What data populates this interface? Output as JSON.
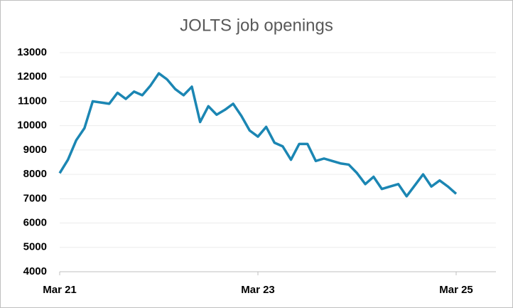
{
  "chart_data": {
    "type": "line",
    "title": "JOLTS job openings",
    "categories": [
      "Mar 21",
      null,
      null,
      null,
      null,
      null,
      null,
      null,
      null,
      null,
      null,
      null,
      null,
      null,
      null,
      null,
      null,
      null,
      null,
      null,
      null,
      null,
      null,
      null,
      "Mar 23",
      null,
      null,
      null,
      null,
      null,
      null,
      null,
      null,
      null,
      null,
      null,
      null,
      null,
      null,
      null,
      null,
      null,
      null,
      null,
      null,
      null,
      null,
      null,
      "Mar 25"
    ],
    "series": [
      {
        "name": "JOLTS job openings",
        "color": "#1b86b3",
        "values": [
          8050,
          8600,
          9400,
          9900,
          11000,
          10950,
          10900,
          11350,
          11100,
          11400,
          11250,
          11650,
          12150,
          11900,
          11500,
          11250,
          11600,
          10150,
          10800,
          10450,
          10650,
          10900,
          10400,
          9800,
          9550,
          9950,
          9300,
          9150,
          8600,
          9250,
          9250,
          8550,
          8650,
          8550,
          8450,
          8400,
          8050,
          7600,
          7900,
          7400,
          7500,
          7600,
          7100,
          7550,
          8000,
          7500,
          7750,
          7500,
          7200
        ]
      }
    ],
    "ylim": [
      4000,
      13000
    ],
    "yticks": [
      4000,
      5000,
      6000,
      7000,
      8000,
      9000,
      10000,
      11000,
      12000,
      13000
    ],
    "grid": true
  }
}
